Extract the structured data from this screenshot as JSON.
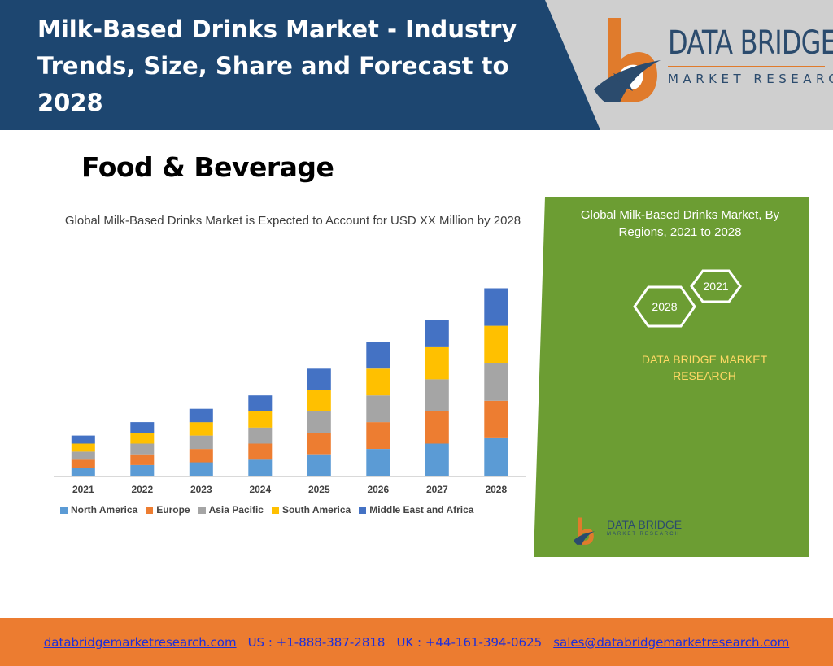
{
  "header": {
    "title": "Milk-Based Drinks Market - Industry Trends, Size, Share and Forecast to 2028",
    "logo_name": "DATA BRIDGE",
    "logo_tagline": "MARKET RESEARCH"
  },
  "section_title": "Food & Beverage",
  "chart_data": {
    "type": "bar",
    "stacked": true,
    "title": "Global Milk-Based Drinks Market is Expected to Account for USD XX Million by 2028",
    "xlabel": "",
    "ylabel": "",
    "grid": false,
    "legend_position": "bottom",
    "categories": [
      "2021",
      "2022",
      "2023",
      "2024",
      "2025",
      "2026",
      "2027",
      "2028"
    ],
    "ylim": [
      0,
      7.5
    ],
    "series": [
      {
        "name": "North America",
        "color": "#5b9bd5",
        "values": [
          0.3,
          0.4,
          0.5,
          0.6,
          0.8,
          1.0,
          1.2,
          1.4
        ]
      },
      {
        "name": "Europe",
        "color": "#ed7d31",
        "values": [
          0.3,
          0.4,
          0.5,
          0.6,
          0.8,
          1.0,
          1.2,
          1.4
        ]
      },
      {
        "name": "Asia Pacific",
        "color": "#a5a5a5",
        "values": [
          0.3,
          0.4,
          0.5,
          0.6,
          0.8,
          1.0,
          1.2,
          1.4
        ]
      },
      {
        "name": "South America",
        "color": "#ffc000",
        "values": [
          0.3,
          0.4,
          0.5,
          0.6,
          0.8,
          1.0,
          1.2,
          1.4
        ]
      },
      {
        "name": "Middle East and Africa",
        "color": "#4472c4",
        "values": [
          0.3,
          0.4,
          0.5,
          0.6,
          0.8,
          1.0,
          1.0,
          1.4
        ]
      }
    ]
  },
  "side_panel": {
    "title": "Global Milk-Based Drinks Market, By Regions, 2021 to 2028",
    "hex_year_a": "2021",
    "hex_year_b": "2028",
    "brand": "DATA BRIDGE MARKET RESEARCH",
    "mini_logo_name": "DATA BRIDGE",
    "mini_logo_tagline": "MARKET RESEARCH"
  },
  "footer": {
    "website": "databridgemarketresearch.com",
    "us_phone": "US : +1-888-387-2818",
    "uk_phone": "UK : +44-161-394-0625",
    "email": "sales@databridgemarketresearch.com"
  },
  "colors": {
    "header_blue": "#1d4670",
    "panel_green": "#6c9d33",
    "footer_orange": "#ec7c30",
    "brand_orange": "#e07b2c",
    "brand_navy": "#2b4b6d"
  }
}
